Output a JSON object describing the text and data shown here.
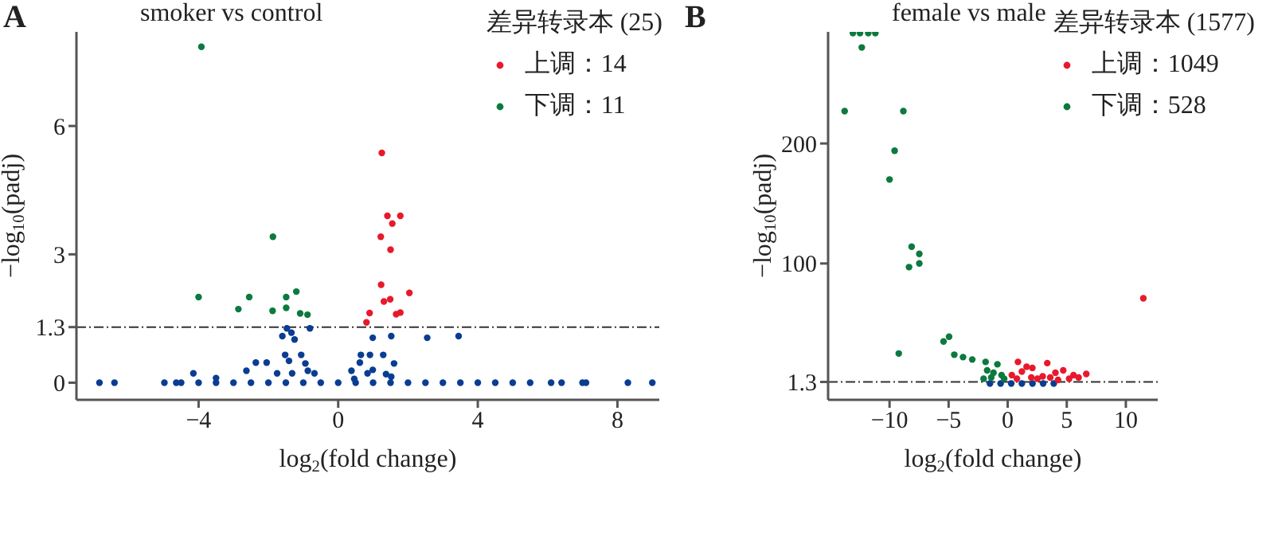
{
  "chart_data": [
    {
      "type": "scatter",
      "title": "smoker vs control",
      "annotations": [
        "A"
      ],
      "xlabel": "log$_{2}$(fold change)",
      "ylabel": "−log$_{10}$(padj)",
      "legend_title": "差异转录本 (25)",
      "legend": "top right",
      "grid": false,
      "marker": "circle",
      "xlim": [
        -7.5,
        9.2
      ],
      "ylim": [
        -0.4,
        8.2
      ],
      "xticks": [
        -4,
        0,
        4,
        8
      ],
      "yticks": [
        0,
        1.3,
        3,
        6
      ],
      "ref_lines": [
        {
          "axis": "y",
          "value": 1.3,
          "color": "#333333",
          "line_style": "dashed"
        }
      ],
      "series": [
        {
          "color": "#0a3d91",
          "x": [
            -6.84,
            -6.41,
            -4.98,
            -4.64,
            -4.5,
            -4.0,
            -3.5,
            -3.0,
            -2.5,
            -2.0,
            -1.5,
            -1.0,
            -0.5,
            0,
            0.5,
            1.0,
            1.5,
            2.0,
            2.5,
            3.0,
            3.5,
            4.0,
            4.5,
            5.0,
            5.5,
            6.1,
            6.4,
            7.0,
            7.1,
            8.3,
            9.0,
            -1.47,
            -1.34,
            -1.6,
            -1.25,
            -0.81,
            0.99,
            1.52,
            2.55,
            3.45,
            -2.63,
            -2.36,
            -2.05,
            -1.52,
            -1.41,
            -1.06,
            -0.94,
            -1.75,
            -1.32,
            -0.87,
            -0.68,
            -4.15,
            -3.5,
            0.65,
            0.91,
            1.29,
            0.62,
            0.99,
            1.6,
            0.38,
            0.84,
            1.37,
            1.52,
            0.46
          ],
          "values": [
            0,
            0,
            0,
            0,
            0,
            0,
            0,
            0,
            0,
            0,
            0,
            0,
            0,
            0,
            0,
            0,
            0,
            0,
            0,
            0,
            0,
            0,
            0,
            0,
            0,
            0,
            0,
            0,
            0,
            0,
            0,
            1.27,
            1.17,
            1.09,
            1.01,
            1.27,
            1.05,
            1.09,
            1.05,
            1.09,
            0.28,
            0.47,
            0.47,
            0.65,
            0.51,
            0.65,
            0.45,
            0.22,
            0.22,
            0.28,
            0.22,
            0.22,
            0.11,
            0.65,
            0.65,
            0.65,
            0.47,
            0.3,
            0.45,
            0.28,
            0.22,
            0.2,
            0.14,
            0.09
          ]
        },
        {
          "name": "上调：14",
          "color": "#e8192c",
          "x": [
            1.25,
            1.41,
            1.78,
            1.55,
            1.22,
            1.5,
            1.23,
            2.04,
            1.49,
            1.31,
            1.78,
            1.66,
            0.9,
            0.81
          ],
          "values": [
            5.37,
            3.9,
            3.9,
            3.72,
            3.41,
            3.11,
            2.29,
            2.1,
            1.95,
            1.9,
            1.64,
            1.6,
            1.63,
            1.41
          ]
        },
        {
          "name": "下调：11",
          "color": "#0c7a3e",
          "x": [
            -3.92,
            -1.87,
            -4.0,
            -2.55,
            -2.86,
            -1.88,
            -1.49,
            -1.49,
            -1.2,
            -1.09,
            -0.88
          ],
          "values": [
            7.85,
            3.41,
            2.0,
            2.0,
            1.72,
            1.68,
            2.0,
            1.75,
            2.13,
            1.62,
            1.59
          ]
        }
      ]
    },
    {
      "type": "scatter",
      "title": "female vs male",
      "annotations": [
        "B"
      ],
      "xlabel": "log$_{2}$(fold change)",
      "ylabel": "−log$_{10}$(padj)",
      "legend_title": "差异转录本 (1577)",
      "legend": "top right",
      "grid": false,
      "marker": "circle",
      "xlim": [
        -15.2,
        12.7
      ],
      "ylim": [
        -13.6,
        293
      ],
      "xticks": [
        -10,
        -5,
        0,
        5,
        10
      ],
      "yticks": [
        1.3,
        100,
        200
      ],
      "ref_lines": [
        {
          "axis": "y",
          "value": 1.3,
          "color": "#333333",
          "line_style": "dashed"
        }
      ],
      "series": [
        {
          "color": "#0a3d91",
          "x": [
            -1.5,
            -0.6,
            0.3,
            1.2,
            2.1,
            3.0,
            3.9
          ],
          "values": [
            0,
            0,
            0,
            0,
            0,
            0,
            0
          ]
        },
        {
          "name": "上调：1049",
          "color": "#e8192c",
          "x": [
            11.48,
            0.87,
            3.35,
            6.65,
            2.09,
            4.7,
            0.35,
            2.0,
            2.96,
            4.04,
            5.57,
            6.0,
            0.78,
            2.52,
            4.26,
            1.2,
            1.6,
            3.6,
            5.2
          ],
          "values": [
            71,
            18,
            17,
            8,
            13,
            11,
            7,
            5,
            6,
            9,
            7,
            5,
            4,
            4,
            3,
            10,
            14,
            5,
            4
          ]
        },
        {
          "name": "下调：528",
          "color": "#0c7a3e",
          "x": [
            -13.1,
            -12.5,
            -11.8,
            -11.2,
            -12.35,
            -13.8,
            -8.83,
            -9.57,
            -10.0,
            -8.13,
            -7.48,
            -7.48,
            -8.35,
            -9.22,
            -5.43,
            -4.96,
            -4.52,
            -3.78,
            -3.0,
            -1.87,
            -1.74,
            -0.87,
            -1.39,
            -0.52,
            -2.04,
            -1.2,
            -0.3
          ],
          "values": [
            292,
            292,
            292,
            292,
            280,
            227,
            227,
            194,
            170,
            114,
            108,
            100,
            97,
            25,
            35,
            39,
            24,
            22,
            20,
            18,
            11,
            16,
            5,
            7,
            4,
            9,
            4
          ]
        }
      ]
    }
  ]
}
